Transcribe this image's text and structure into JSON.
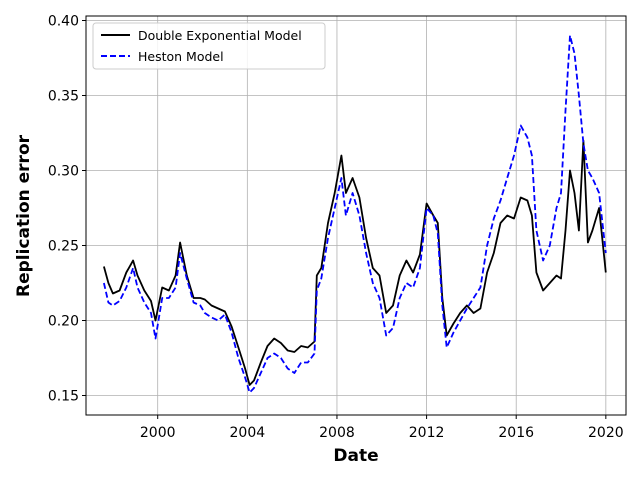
{
  "chart_data": {
    "type": "line",
    "title": "",
    "xlabel": "Date",
    "ylabel": "Replication error",
    "xlim": [
      1996.8,
      2020.9
    ],
    "ylim": [
      0.137,
      0.403
    ],
    "xticks": [
      2000,
      2004,
      2008,
      2012,
      2016,
      2020
    ],
    "xtick_labels": [
      "2000",
      "2004",
      "2008",
      "2012",
      "2016",
      "2020"
    ],
    "yticks": [
      0.15,
      0.2,
      0.25,
      0.3,
      0.35,
      0.4
    ],
    "ytick_labels": [
      "0.15",
      "0.20",
      "0.25",
      "0.30",
      "0.35",
      "0.40"
    ],
    "grid": true,
    "legend_position": "top-left",
    "series": [
      {
        "name": "Double Exponential Model",
        "color": "#000000",
        "style": "solid",
        "x": [
          1997.6,
          1997.8,
          1998.0,
          1998.3,
          1998.6,
          1998.9,
          1999.1,
          1999.4,
          1999.7,
          1999.9,
          2000.2,
          2000.5,
          2000.8,
          2001.0,
          2001.3,
          2001.6,
          2001.9,
          2002.1,
          2002.4,
          2002.7,
          2003.0,
          2003.3,
          2003.6,
          2003.9,
          2004.1,
          2004.3,
          2004.6,
          2004.9,
          2005.2,
          2005.5,
          2005.8,
          2006.1,
          2006.4,
          2006.7,
          2007.0,
          2007.1,
          2007.3,
          2007.6,
          2007.9,
          2008.2,
          2008.4,
          2008.7,
          2009.0,
          2009.3,
          2009.6,
          2009.9,
          2010.2,
          2010.5,
          2010.8,
          2011.1,
          2011.4,
          2011.7,
          2012.0,
          2012.3,
          2012.5,
          2012.7,
          2012.9,
          2013.2,
          2013.5,
          2013.8,
          2014.1,
          2014.4,
          2014.7,
          2015.0,
          2015.3,
          2015.6,
          2015.9,
          2016.2,
          2016.5,
          2016.7,
          2016.9,
          2017.2,
          2017.5,
          2017.8,
          2018.0,
          2018.2,
          2018.4,
          2018.6,
          2018.8,
          2019.0,
          2019.2,
          2019.4,
          2019.7,
          2020.0
        ],
        "values": [
          0.236,
          0.225,
          0.218,
          0.22,
          0.232,
          0.24,
          0.23,
          0.22,
          0.213,
          0.2,
          0.222,
          0.22,
          0.23,
          0.252,
          0.23,
          0.215,
          0.215,
          0.214,
          0.21,
          0.208,
          0.206,
          0.196,
          0.182,
          0.168,
          0.157,
          0.16,
          0.172,
          0.183,
          0.188,
          0.185,
          0.18,
          0.179,
          0.183,
          0.182,
          0.186,
          0.23,
          0.235,
          0.265,
          0.285,
          0.31,
          0.285,
          0.295,
          0.282,
          0.255,
          0.235,
          0.23,
          0.205,
          0.21,
          0.23,
          0.24,
          0.232,
          0.244,
          0.278,
          0.27,
          0.265,
          0.215,
          0.19,
          0.198,
          0.205,
          0.21,
          0.205,
          0.208,
          0.232,
          0.245,
          0.265,
          0.27,
          0.268,
          0.282,
          0.28,
          0.27,
          0.232,
          0.22,
          0.225,
          0.23,
          0.228,
          0.26,
          0.3,
          0.285,
          0.26,
          0.32,
          0.252,
          0.26,
          0.275,
          0.232
        ]
      },
      {
        "name": "Heston Model",
        "color": "#0000ff",
        "style": "dashed",
        "x": [
          1997.6,
          1997.8,
          1998.0,
          1998.3,
          1998.6,
          1998.9,
          1999.1,
          1999.4,
          1999.7,
          1999.9,
          2000.2,
          2000.5,
          2000.8,
          2001.0,
          2001.3,
          2001.6,
          2001.9,
          2002.1,
          2002.4,
          2002.7,
          2003.0,
          2003.3,
          2003.6,
          2003.9,
          2004.1,
          2004.3,
          2004.6,
          2004.9,
          2005.2,
          2005.5,
          2005.8,
          2006.1,
          2006.4,
          2006.7,
          2007.0,
          2007.1,
          2007.3,
          2007.6,
          2007.9,
          2008.2,
          2008.4,
          2008.7,
          2009.0,
          2009.3,
          2009.6,
          2009.9,
          2010.2,
          2010.5,
          2010.8,
          2011.1,
          2011.4,
          2011.7,
          2012.0,
          2012.3,
          2012.5,
          2012.7,
          2012.9,
          2013.2,
          2013.5,
          2013.8,
          2014.1,
          2014.4,
          2014.7,
          2015.0,
          2015.3,
          2015.6,
          2015.9,
          2016.2,
          2016.5,
          2016.7,
          2016.9,
          2017.2,
          2017.5,
          2017.8,
          2018.0,
          2018.2,
          2018.4,
          2018.6,
          2018.8,
          2019.0,
          2019.2,
          2019.4,
          2019.7,
          2020.0
        ],
        "values": [
          0.225,
          0.212,
          0.21,
          0.213,
          0.222,
          0.235,
          0.222,
          0.212,
          0.205,
          0.188,
          0.215,
          0.215,
          0.222,
          0.245,
          0.228,
          0.212,
          0.21,
          0.205,
          0.202,
          0.2,
          0.204,
          0.192,
          0.175,
          0.162,
          0.152,
          0.155,
          0.165,
          0.175,
          0.178,
          0.175,
          0.168,
          0.165,
          0.172,
          0.172,
          0.178,
          0.22,
          0.228,
          0.255,
          0.275,
          0.295,
          0.27,
          0.285,
          0.27,
          0.245,
          0.225,
          0.215,
          0.19,
          0.195,
          0.215,
          0.225,
          0.222,
          0.235,
          0.275,
          0.27,
          0.258,
          0.21,
          0.182,
          0.192,
          0.2,
          0.208,
          0.215,
          0.222,
          0.25,
          0.268,
          0.28,
          0.295,
          0.31,
          0.33,
          0.322,
          0.31,
          0.26,
          0.24,
          0.25,
          0.275,
          0.285,
          0.34,
          0.39,
          0.378,
          0.35,
          0.318,
          0.3,
          0.295,
          0.285,
          0.245
        ]
      }
    ]
  }
}
